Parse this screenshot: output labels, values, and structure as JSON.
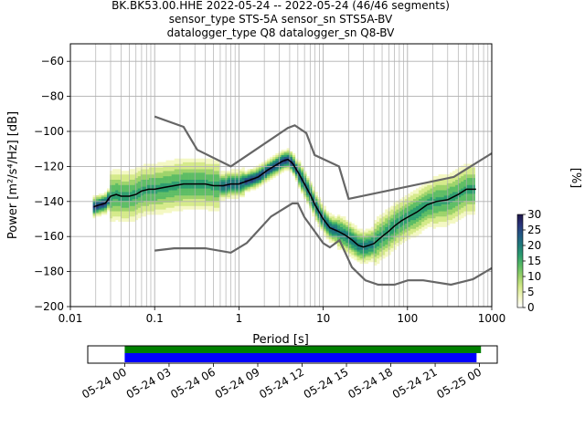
{
  "title": {
    "line1": "BK.BK53.00.HHE   2022-05-24 -- 2022-05-24  (46/46 segments)",
    "line2": "sensor_type STS-5A sensor_sn STS5A-BV",
    "line3": "datalogger_type Q8 datalogger_sn Q8-BV"
  },
  "chart_data": [
    {
      "type": "heatmap",
      "xlabel": "Period [s]",
      "ylabel": "Power [m²/s⁴/Hz] [dB]",
      "x_scale": "log",
      "xlim": [
        0.01,
        1000
      ],
      "ylim": [
        -200,
        -50
      ],
      "x_ticks": [
        {
          "value": 0.01,
          "label": "0.01"
        },
        {
          "value": 0.1,
          "label": "0.1"
        },
        {
          "value": 1,
          "label": "1"
        },
        {
          "value": 10,
          "label": "10"
        },
        {
          "value": 100,
          "label": "100"
        },
        {
          "value": 1000,
          "label": "1000"
        }
      ],
      "y_ticks": [
        {
          "value": -60,
          "label": "−60"
        },
        {
          "value": -80,
          "label": "−80"
        },
        {
          "value": -100,
          "label": "−100"
        },
        {
          "value": -120,
          "label": "−120"
        },
        {
          "value": -140,
          "label": "−140"
        },
        {
          "value": -160,
          "label": "−160"
        },
        {
          "value": -180,
          "label": "−180"
        },
        {
          "value": -200,
          "label": "−200"
        }
      ],
      "grid": true,
      "mean_curve": {
        "period": [
          0.019,
          0.022,
          0.026,
          0.03,
          0.035,
          0.04,
          0.05,
          0.06,
          0.07,
          0.085,
          0.1,
          0.13,
          0.17,
          0.22,
          0.3,
          0.4,
          0.5,
          0.65,
          0.8,
          1,
          1.3,
          1.7,
          2.2,
          2.8,
          3.3,
          3.8,
          4.3,
          5,
          6,
          7,
          8,
          10,
          12,
          15,
          18,
          22,
          26,
          30,
          35,
          40,
          50,
          60,
          70,
          85,
          100,
          130,
          170,
          220,
          300,
          400,
          500,
          650
        ],
        "power": [
          -143,
          -142,
          -141,
          -137,
          -136,
          -137,
          -137,
          -136,
          -134,
          -133,
          -133,
          -132,
          -131,
          -130,
          -130,
          -130,
          -131,
          -131,
          -130,
          -130,
          -128,
          -126,
          -122,
          -119,
          -117,
          -116,
          -118,
          -123,
          -130,
          -136,
          -142,
          -150,
          -155,
          -157,
          -159,
          -162,
          -165,
          -166,
          -165,
          -164,
          -160,
          -157,
          -154,
          -151,
          -149,
          -146,
          -142,
          -140,
          -139,
          -136,
          -133,
          -133
        ]
      },
      "nhnm": {
        "period": [
          0.1,
          0.22,
          0.32,
          0.8,
          3.8,
          4.6,
          6.3,
          7.9,
          15.4,
          20,
          354.8,
          1000
        ],
        "power": [
          -91.5,
          -97.4,
          -110.5,
          -120,
          -98,
          -96.5,
          -101,
          -113.5,
          -120,
          -138.5,
          -126,
          -112.5
        ]
      },
      "nlnm": {
        "period": [
          0.1,
          0.17,
          0.4,
          0.8,
          1.24,
          2.4,
          4.3,
          5,
          6,
          10,
          12,
          15.6,
          21.9,
          31.6,
          45,
          70,
          101,
          154,
          328,
          600,
          1000
        ],
        "power": [
          -168,
          -166.7,
          -166.7,
          -169.2,
          -163.7,
          -148.6,
          -141.1,
          -141.1,
          -149,
          -163.8,
          -166.2,
          -162.1,
          -177.5,
          -185,
          -187.5,
          -187.5,
          -185,
          -185,
          -187.5,
          -184.4,
          -178
        ]
      },
      "colorbar": {
        "label": "[%]",
        "min": 0,
        "max": 30,
        "ticks": [
          {
            "value": 0,
            "label": "0"
          },
          {
            "value": 5,
            "label": "5"
          },
          {
            "value": 10,
            "label": "10"
          },
          {
            "value": 15,
            "label": "15"
          },
          {
            "value": 20,
            "label": "20"
          },
          {
            "value": 25,
            "label": "25"
          },
          {
            "value": 30,
            "label": "30"
          }
        ],
        "colors": [
          "#ffffff",
          "#f4f8c4",
          "#d5ea8a",
          "#9dd36a",
          "#5dbd64",
          "#2d9e6e",
          "#1f7c7a",
          "#235a84",
          "#28347a",
          "#1e1548"
        ]
      },
      "colors": {
        "mean": "#000000",
        "noise_model": "#666666",
        "grid": "#b0b0b0"
      }
    },
    {
      "type": "timeline",
      "x_ticks": [
        "05-24 00",
        "05-24 03",
        "05-24 06",
        "05-24 09",
        "05-24 12",
        "05-24 15",
        "05-24 18",
        "05-24 21",
        "05-25 00"
      ],
      "x_range_hours": [
        -2.5,
        25.2
      ],
      "green_bar_hours": [
        0,
        24.1
      ],
      "blue_bar_hours": [
        0,
        23.8
      ],
      "colors": {
        "green": "#008000",
        "blue": "#0000ff"
      }
    }
  ]
}
